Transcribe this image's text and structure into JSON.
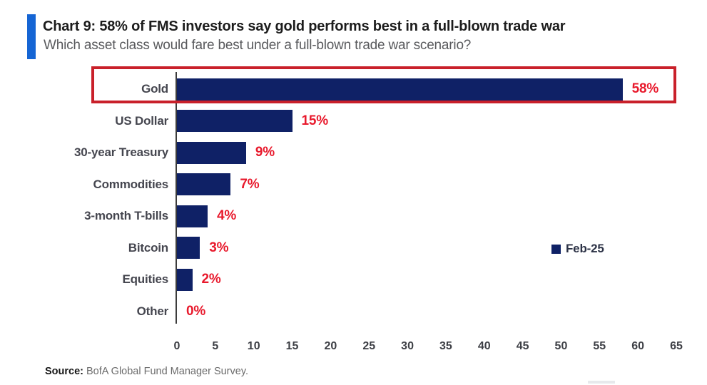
{
  "header": {
    "title": "Chart 9: 58% of FMS investors say gold performs best in a full-blown trade war",
    "subtitle": "Which asset class would fare best under a full-blown trade war scenario?"
  },
  "chart_data": {
    "type": "bar",
    "orientation": "horizontal",
    "title": "Chart 9: 58% of FMS investors say gold performs best in a full-blown trade war",
    "subtitle": "Which asset class would fare best under a full-blown trade war scenario?",
    "categories": [
      "Gold",
      "US Dollar",
      "30-year Treasury",
      "Commodities",
      "3-month T-bills",
      "Bitcoin",
      "Equities",
      "Other"
    ],
    "values": [
      58,
      15,
      9,
      7,
      4,
      3,
      2,
      0
    ],
    "value_labels": [
      "58%",
      "15%",
      "9%",
      "7%",
      "4%",
      "3%",
      "2%",
      "0%"
    ],
    "series_name": "Feb-25",
    "xlabel": "",
    "ylabel": "",
    "xlim": [
      0,
      65
    ],
    "xticks": [
      0,
      5,
      10,
      15,
      20,
      25,
      30,
      35,
      40,
      45,
      50,
      55,
      60,
      65
    ],
    "grid": false,
    "legend_position": "right-middle",
    "highlighted_category": "Gold"
  },
  "legend": {
    "label": "Feb-25"
  },
  "footer": {
    "source_label": "Source:",
    "source_text": "BofA Global Fund Manager Survey."
  },
  "colors": {
    "bar": "#0f2166",
    "value_label": "#e8192c",
    "highlight_box": "#c9202a",
    "accent_bar": "#1565d4",
    "axis_line": "#3c3c3c",
    "legend_swatch": "#0f2166"
  }
}
